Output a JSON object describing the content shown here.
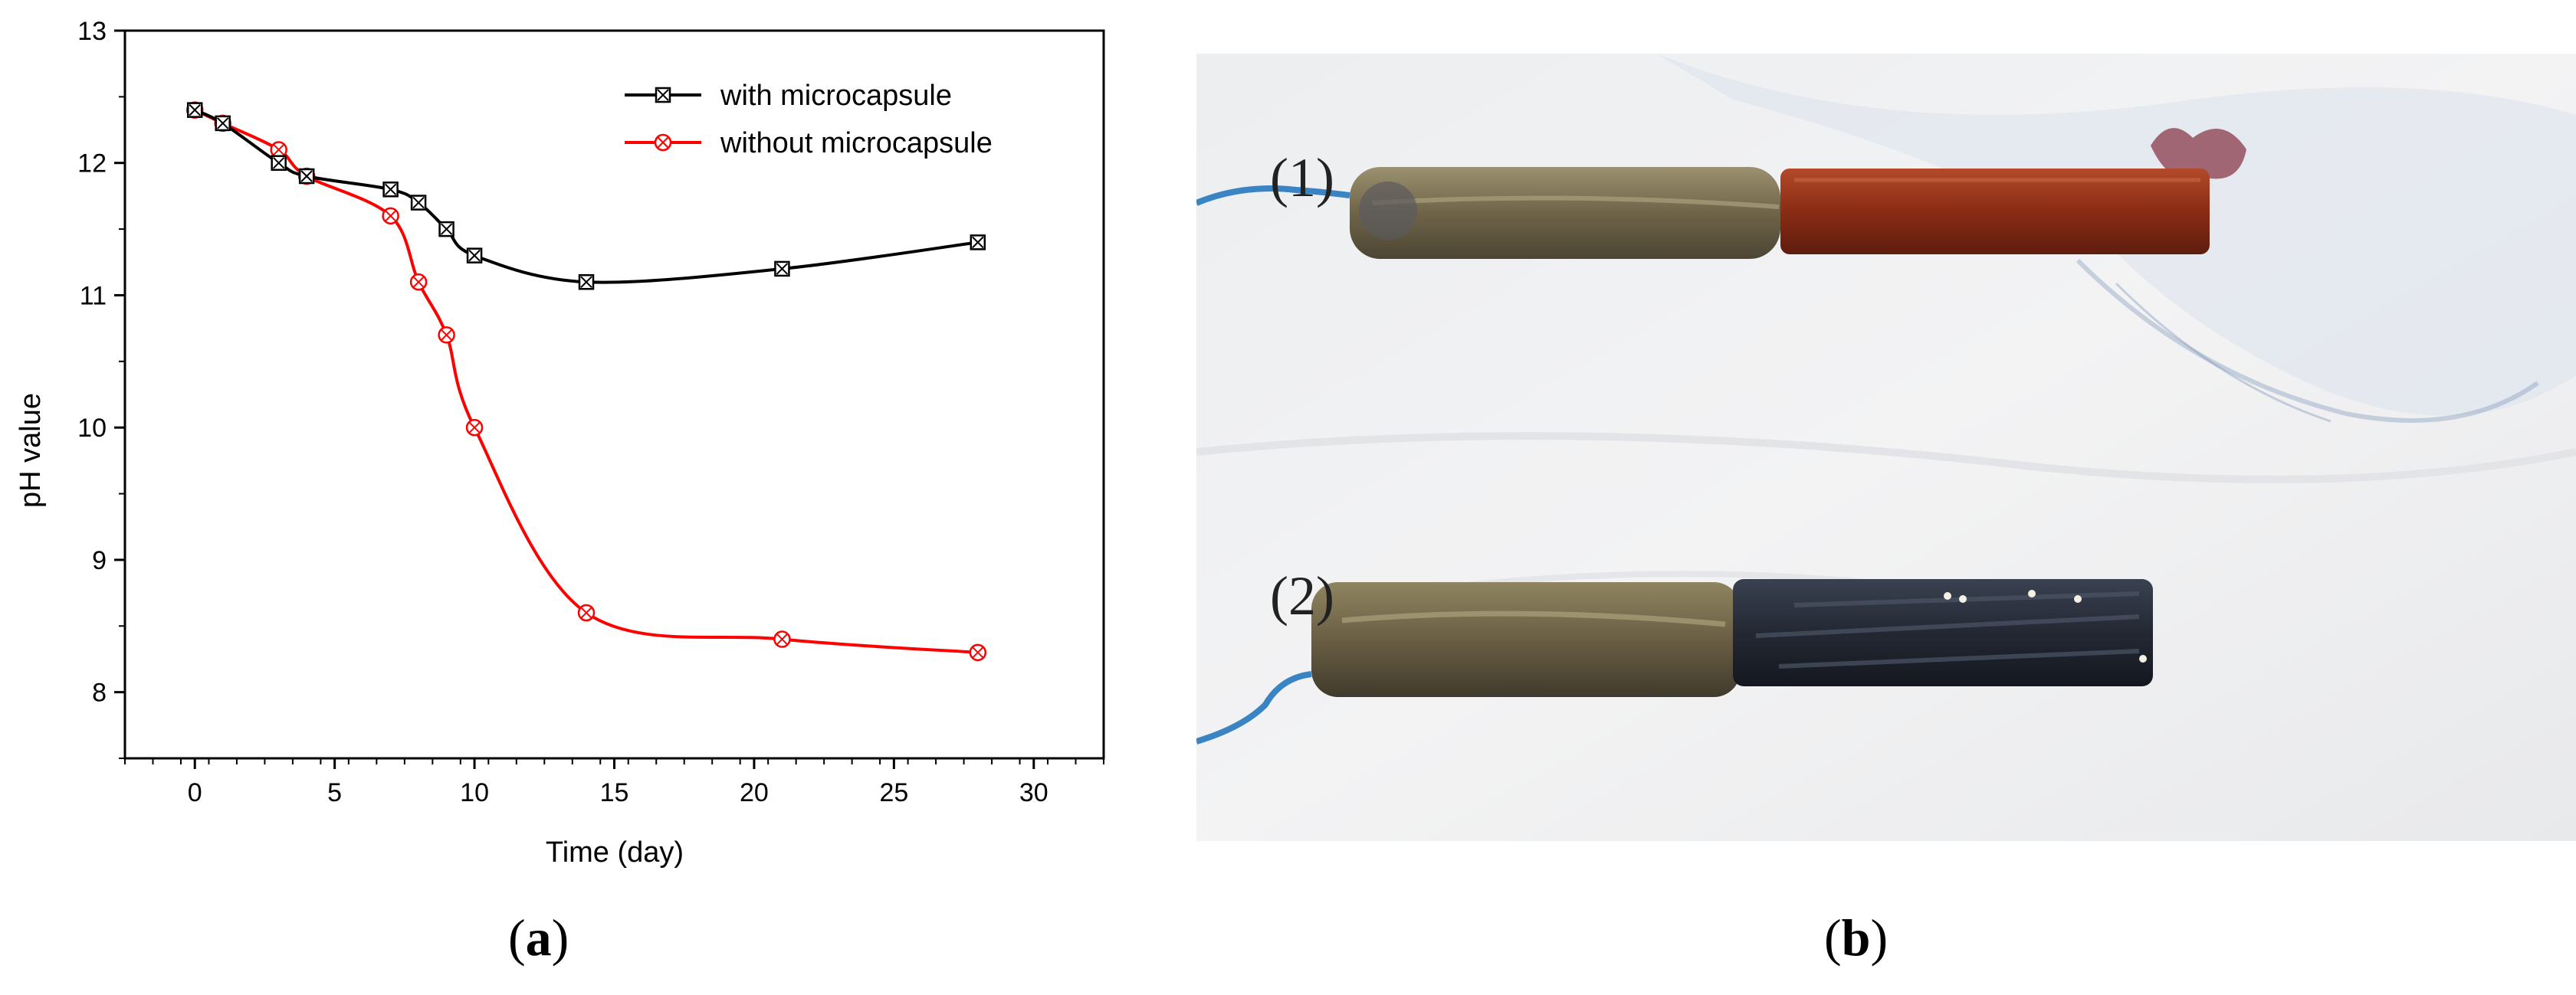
{
  "panels": {
    "a": {
      "label_open": "(",
      "label_letter": "a",
      "label_close": ")"
    },
    "b": {
      "label_open": "(",
      "label_letter": "b",
      "label_close": ")"
    }
  },
  "photo": {
    "sample1_label": "(1)",
    "sample2_label": "(2)"
  },
  "chart_data": {
    "type": "line",
    "title": "",
    "xlabel": "Time (day)",
    "ylabel": "pH value",
    "xlim": [
      -2.5,
      32.5
    ],
    "ylim": [
      7.5,
      13
    ],
    "xticks": [
      0,
      5,
      10,
      15,
      20,
      25,
      30
    ],
    "yticks": [
      8,
      9,
      10,
      11,
      12,
      13
    ],
    "legend_position": "top-right",
    "grid": false,
    "series": [
      {
        "name": "with microcapsule",
        "color": "#000000",
        "marker": "square-x",
        "x": [
          0,
          1,
          3,
          4,
          7,
          8,
          9,
          10,
          14,
          21,
          28
        ],
        "y": [
          12.4,
          12.3,
          12.0,
          11.9,
          11.8,
          11.7,
          11.5,
          11.3,
          11.1,
          11.2,
          11.4
        ]
      },
      {
        "name": "without microcapsule",
        "color": "#ff0000",
        "marker": "circle-x",
        "x": [
          0,
          1,
          3,
          4,
          7,
          8,
          9,
          10,
          14,
          21,
          28
        ],
        "y": [
          12.4,
          12.3,
          12.1,
          11.9,
          11.6,
          11.1,
          10.7,
          10.0,
          8.6,
          8.4,
          8.3
        ]
      }
    ]
  }
}
